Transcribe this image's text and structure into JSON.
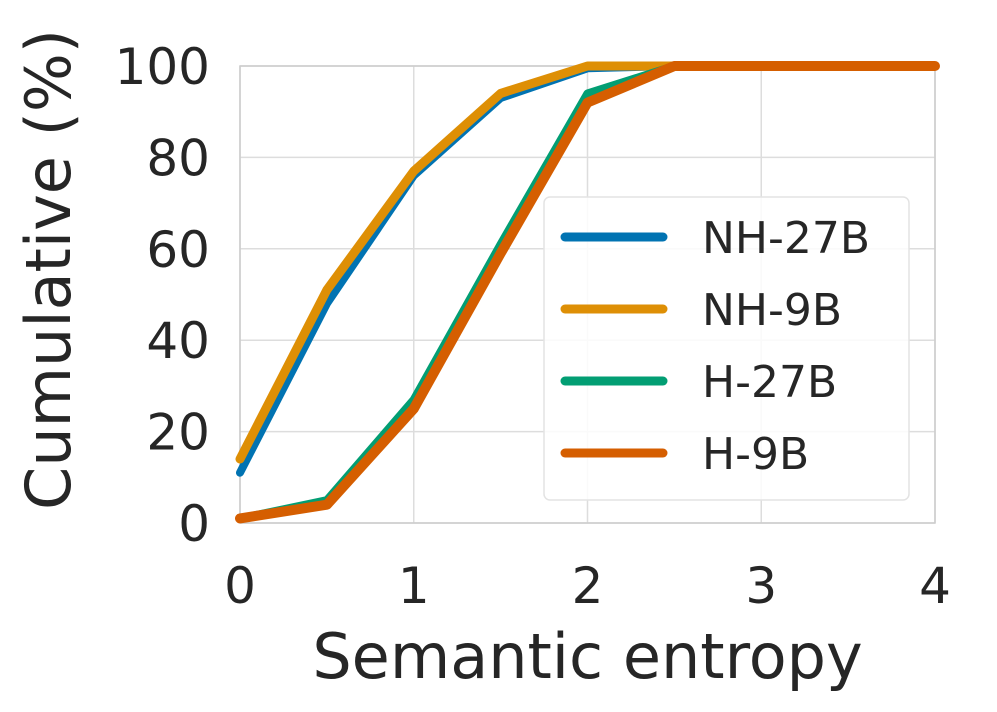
{
  "chart_data": {
    "type": "line",
    "title": "",
    "xlabel": "Semantic entropy",
    "ylabel": "Cumulative (%)",
    "xlim": [
      0,
      4
    ],
    "ylim": [
      0,
      100
    ],
    "xticks": [
      "0",
      "1",
      "2",
      "3",
      "4"
    ],
    "yticks": [
      "0",
      "20",
      "40",
      "60",
      "80",
      "100"
    ],
    "grid": true,
    "legend_position": "center-right",
    "x": [
      0,
      0.5,
      1,
      1.5,
      2,
      2.5,
      3,
      3.5,
      4
    ],
    "series": [
      {
        "name": "NH-27B",
        "color": "#0173b2",
        "values": [
          11,
          48,
          76,
          93,
          99.5,
          100,
          100,
          100,
          100
        ]
      },
      {
        "name": "NH-9B",
        "color": "#de8f05",
        "values": [
          14,
          51,
          77,
          94,
          100,
          100,
          100,
          100,
          100
        ]
      },
      {
        "name": "H-27B",
        "color": "#029e73",
        "values": [
          1,
          5,
          27,
          61,
          94,
          100,
          100,
          100,
          100
        ]
      },
      {
        "name": "H-9B",
        "color": "#d55e00",
        "values": [
          1,
          4,
          25,
          59,
          92,
          100,
          100,
          100,
          100
        ]
      }
    ]
  }
}
